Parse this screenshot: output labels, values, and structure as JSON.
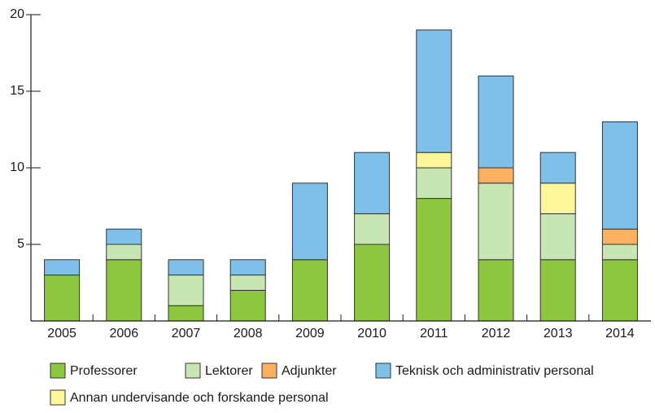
{
  "chart_data": {
    "type": "bar",
    "stacked": true,
    "categories": [
      "2005",
      "2006",
      "2007",
      "2008",
      "2009",
      "2010",
      "2011",
      "2012",
      "2013",
      "2014"
    ],
    "series": [
      {
        "name": "Professorer",
        "color": "#8dc63f",
        "values": [
          3,
          4,
          1,
          2,
          4,
          5,
          8,
          4,
          4,
          4
        ]
      },
      {
        "name": "Lektorer",
        "color": "#c8e6b4",
        "values": [
          0,
          1,
          2,
          1,
          0,
          2,
          2,
          5,
          3,
          1
        ]
      },
      {
        "name": "Adjunkter",
        "color": "#fbb161",
        "values": [
          0,
          0,
          0,
          0,
          0,
          0,
          0,
          1,
          0,
          1
        ]
      },
      {
        "name": "Annan undervisande och forskande personal",
        "color": "#fff799",
        "values": [
          0,
          0,
          0,
          0,
          0,
          0,
          1,
          0,
          2,
          0
        ]
      },
      {
        "name": "Teknisk och administrativ personal",
        "color": "#7ec0ea",
        "values": [
          1,
          1,
          1,
          1,
          5,
          4,
          8,
          6,
          2,
          7
        ]
      }
    ],
    "ylim": [
      0,
      20
    ],
    "yticks": [
      5,
      10,
      15,
      20
    ]
  }
}
